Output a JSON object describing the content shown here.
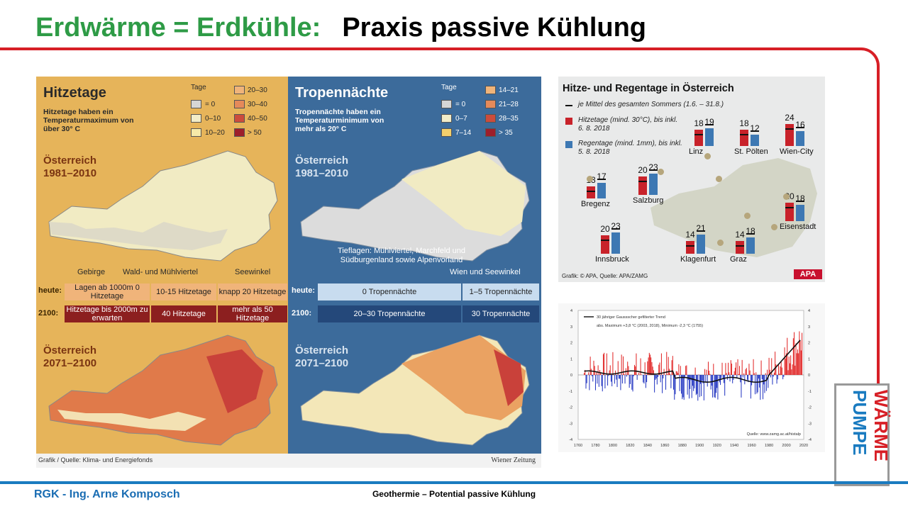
{
  "title": {
    "green": "Erdwärme = Erdkühle:",
    "black": "Praxis passive Kühlung"
  },
  "footer": {
    "author": "RGK - Ing. Arne Komposch",
    "topic": "Geothermie – Potential passive Kühlung"
  },
  "logo": {
    "line1": "WÄRME",
    "line2": "PUMPE"
  },
  "colors": {
    "accent_red": "#d71f26",
    "accent_green": "#2e9b46",
    "accent_blue": "#1a7bc0"
  },
  "maps": {
    "left": {
      "title": "Hitzetage",
      "subtitle": "Hitzetage haben ein Temperaturmaximum von über 30° C",
      "legend_head": "Tage",
      "legend": [
        "= 0",
        "0–10",
        "10–20",
        "20–30",
        "30–40",
        "40–50",
        "> 50"
      ],
      "period1": "Österreich 1981–2010",
      "period2": "Österreich 2071–2100",
      "region_labels": [
        "Gebirge",
        "Wald- und Mühlviertel",
        "Seewinkel"
      ],
      "heute": [
        "Lagen ab 1000m 0 Hitzetage",
        "10-15 Hitzetage",
        "knapp 20 Hitzetage"
      ],
      "y2100": [
        "Hitzetage bis 2000m zu erwarten",
        "40 Hitzetage",
        "mehr als 50 Hitzetage"
      ]
    },
    "right": {
      "title": "Tropennächte",
      "subtitle": "Tropennächte haben ein Temperaturminimum von mehr als 20° C",
      "legend_head": "Tage",
      "legend": [
        "= 0",
        "0–7",
        "7–14",
        "14–21",
        "21–28",
        "28–35",
        "> 35"
      ],
      "period1": "Österreich 1981–2010",
      "period2": "Österreich 2071–2100",
      "region_note": "Tieflagen: Mühlviertel, Marchfeld und Südburgenland sowie Alpenvorland",
      "region_right": "Wien und Seewinkel",
      "heute": [
        "0 Tropennächte",
        "1–5 Tropennächte"
      ],
      "y2100": [
        "20–30 Tropennächte",
        "30 Tropennächte"
      ]
    },
    "row_labels": {
      "heute": "heute:",
      "y2100": "2100:"
    },
    "source": "Grafik / Quelle: Klima- und Energiefonds",
    "publisher": "Wiener Zeitung"
  },
  "apa": {
    "title": "Hitze- und Regentage in Österreich",
    "legend_mean": "je Mittel des gesamten Sommers (1.6. – 31.8.)",
    "legend_hitze": "Hitzetage (mind. 30°C), bis inkl. 6. 8. 2018",
    "legend_regen": "Regentage (mind. 1mm), bis inkl. 5. 8. 2018",
    "source": "Grafik: © APA, Quelle: APA/ZAMG",
    "logo": "APA"
  },
  "chart_data": [
    {
      "type": "bar",
      "title": "Hitze- und Regentage in Österreich",
      "categories": [
        "Bregenz",
        "Salzburg",
        "Linz",
        "St. Pölten",
        "Wien-City",
        "Eisenstadt",
        "Innsbruck",
        "Klagenfurt",
        "Graz"
      ],
      "series": [
        {
          "name": "Hitzetage (mind. 30°C), bis inkl. 6. 8. 2018",
          "values": [
            13,
            20,
            18,
            18,
            24,
            20,
            20,
            14,
            14
          ]
        },
        {
          "name": "Regentage (mind. 1mm), bis inkl. 5. 8. 2018",
          "values": [
            17,
            23,
            19,
            12,
            16,
            18,
            23,
            21,
            18
          ]
        }
      ]
    },
    {
      "type": "bar",
      "title": "",
      "legend": [
        "30 jähriger Gaussscher gefilterter Trend"
      ],
      "annotation": "abs. Maximum +3,8 °C (2003, 2018), Minimum -2,3 °C (1755)",
      "source": "Quelle: www.zamg.ac.at/histalp",
      "xlim": [
        1760,
        2020
      ],
      "ylim": [
        -4,
        4
      ],
      "xticks": [
        "1760",
        "1780",
        "1800",
        "1820",
        "1840",
        "1860",
        "1880",
        "1900",
        "1920",
        "1940",
        "1960",
        "1980",
        "2000",
        "2020"
      ],
      "yticks": [
        "4",
        "3",
        "2",
        "1",
        "0",
        "-1",
        "-2",
        "-3",
        "-4"
      ]
    }
  ]
}
